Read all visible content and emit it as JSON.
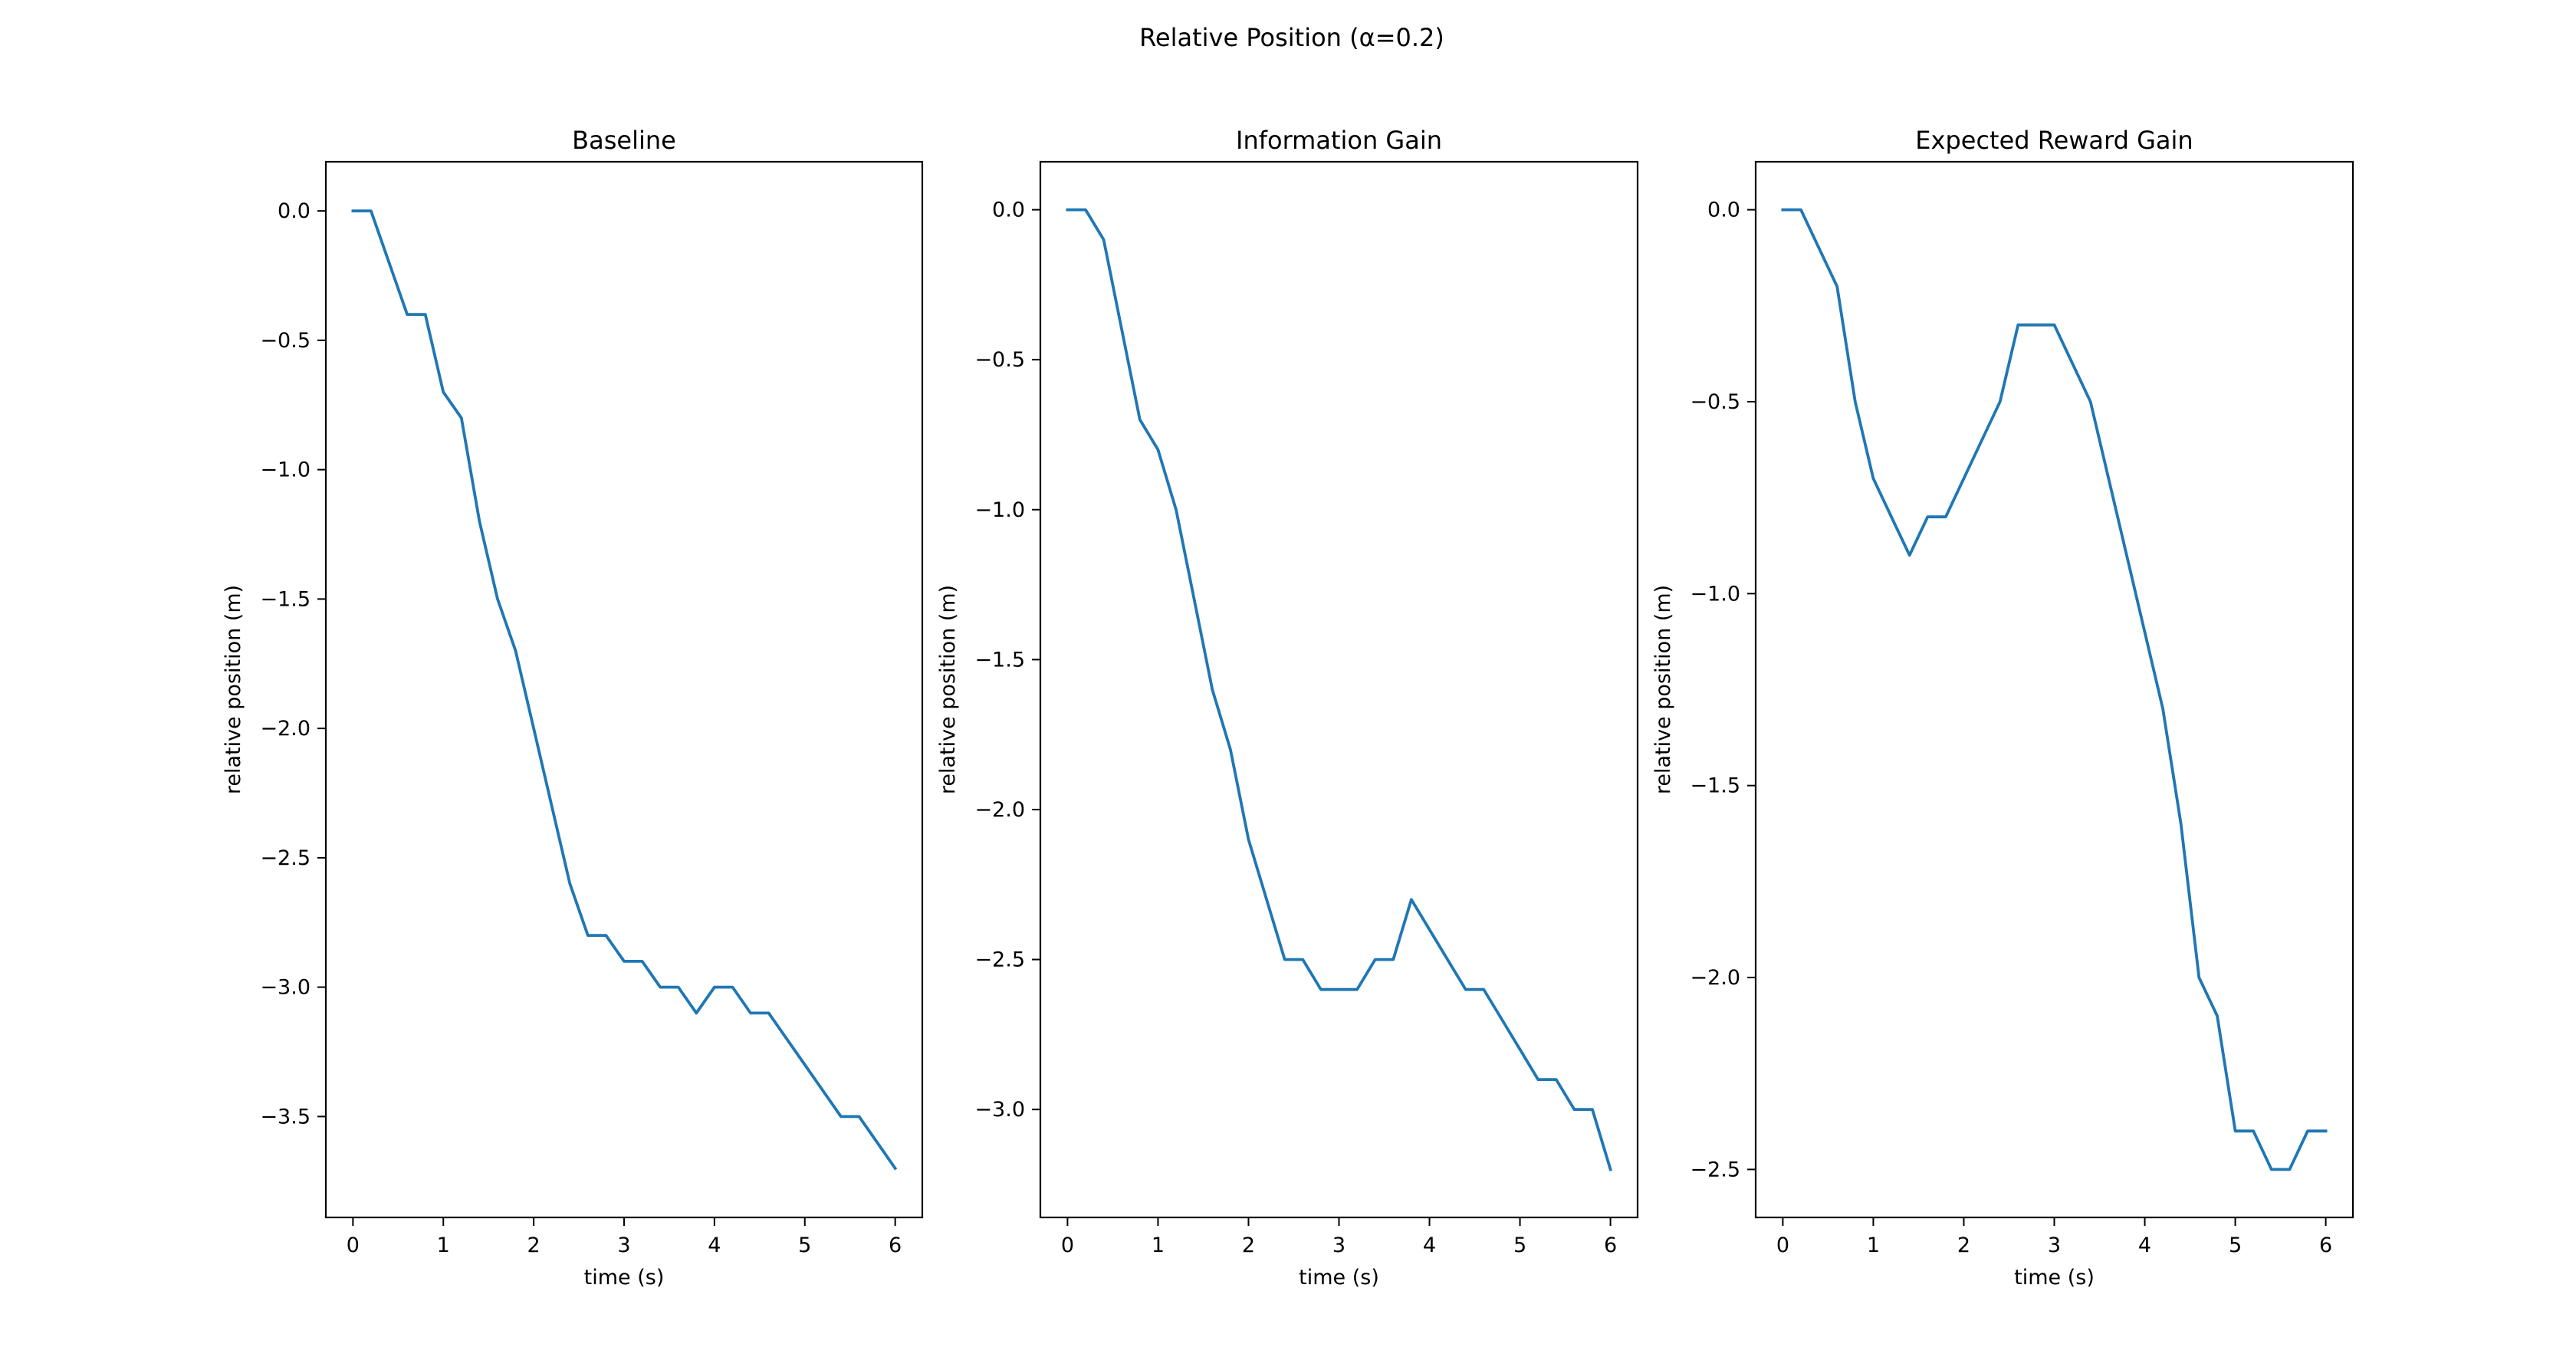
{
  "suptitle": "Relative Position (α=0.2)",
  "line_color": "#1f77b4",
  "chart_data": [
    {
      "type": "line",
      "title": "Baseline",
      "xlabel": "time (s)",
      "ylabel": "relative position (m)",
      "xlim": [
        -0.3,
        6.3
      ],
      "ylim": [
        -3.89,
        0.19
      ],
      "xticks": [
        0,
        1,
        2,
        3,
        4,
        5,
        6
      ],
      "yticks": [
        0.0,
        -0.5,
        -1.0,
        -1.5,
        -2.0,
        -2.5,
        -3.0,
        -3.5
      ],
      "grid": false,
      "x": [
        0,
        0.2,
        0.4,
        0.6,
        0.8,
        1.0,
        1.2,
        1.4,
        1.6,
        1.8,
        2.0,
        2.2,
        2.4,
        2.6,
        2.8,
        3.0,
        3.2,
        3.4,
        3.6,
        3.8,
        4.0,
        4.2,
        4.4,
        4.6,
        4.8,
        5.0,
        5.2,
        5.4,
        5.6,
        5.8,
        6.0
      ],
      "series": [
        {
          "values": [
            0.0,
            0.0,
            -0.2,
            -0.4,
            -0.4,
            -0.7,
            -0.8,
            -1.2,
            -1.5,
            -1.7,
            -2.0,
            -2.3,
            -2.6,
            -2.8,
            -2.8,
            -2.9,
            -2.9,
            -3.0,
            -3.0,
            -3.1,
            -3.0,
            -3.0,
            -3.1,
            -3.1,
            -3.2,
            -3.3,
            -3.4,
            -3.5,
            -3.5,
            -3.6,
            -3.7
          ]
        }
      ]
    },
    {
      "type": "line",
      "title": "Information Gain",
      "xlabel": "time (s)",
      "ylabel": "relative position (m)",
      "xlim": [
        -0.3,
        6.3
      ],
      "ylim": [
        -3.36,
        0.16
      ],
      "xticks": [
        0,
        1,
        2,
        3,
        4,
        5,
        6
      ],
      "yticks": [
        0.0,
        -0.5,
        -1.0,
        -1.5,
        -2.0,
        -2.5,
        -3.0
      ],
      "grid": false,
      "x": [
        0,
        0.2,
        0.4,
        0.6,
        0.8,
        1.0,
        1.2,
        1.4,
        1.6,
        1.8,
        2.0,
        2.2,
        2.4,
        2.6,
        2.8,
        3.0,
        3.2,
        3.4,
        3.6,
        3.8,
        4.0,
        4.2,
        4.4,
        4.6,
        4.8,
        5.0,
        5.2,
        5.4,
        5.6,
        5.8,
        6.0
      ],
      "series": [
        {
          "values": [
            0.0,
            0.0,
            -0.1,
            -0.4,
            -0.7,
            -0.8,
            -1.0,
            -1.3,
            -1.6,
            -1.8,
            -2.1,
            -2.3,
            -2.5,
            -2.5,
            -2.6,
            -2.6,
            -2.6,
            -2.5,
            -2.5,
            -2.3,
            -2.4,
            -2.5,
            -2.6,
            -2.6,
            -2.7,
            -2.8,
            -2.9,
            -2.9,
            -3.0,
            -3.0,
            -3.2
          ]
        }
      ]
    },
    {
      "type": "line",
      "title": "Expected Reward Gain",
      "xlabel": "time (s)",
      "ylabel": "relative position (m)",
      "xlim": [
        -0.3,
        6.3
      ],
      "ylim": [
        -2.625,
        0.125
      ],
      "xticks": [
        0,
        1,
        2,
        3,
        4,
        5,
        6
      ],
      "yticks": [
        0.0,
        -0.5,
        -1.0,
        -1.5,
        -2.0,
        -2.5
      ],
      "grid": false,
      "x": [
        0,
        0.2,
        0.4,
        0.6,
        0.8,
        1.0,
        1.2,
        1.4,
        1.6,
        1.8,
        2.0,
        2.2,
        2.4,
        2.6,
        2.8,
        3.0,
        3.2,
        3.4,
        3.6,
        3.8,
        4.0,
        4.2,
        4.4,
        4.6,
        4.8,
        5.0,
        5.2,
        5.4,
        5.6,
        5.8,
        6.0
      ],
      "series": [
        {
          "values": [
            0.0,
            0.0,
            -0.1,
            -0.2,
            -0.5,
            -0.7,
            -0.8,
            -0.9,
            -0.8,
            -0.8,
            -0.7,
            -0.6,
            -0.5,
            -0.3,
            -0.3,
            -0.3,
            -0.4,
            -0.5,
            -0.7,
            -0.9,
            -1.1,
            -1.3,
            -1.6,
            -2.0,
            -2.1,
            -2.4,
            -2.4,
            -2.5,
            -2.5,
            -2.4,
            -2.4
          ]
        }
      ]
    }
  ]
}
